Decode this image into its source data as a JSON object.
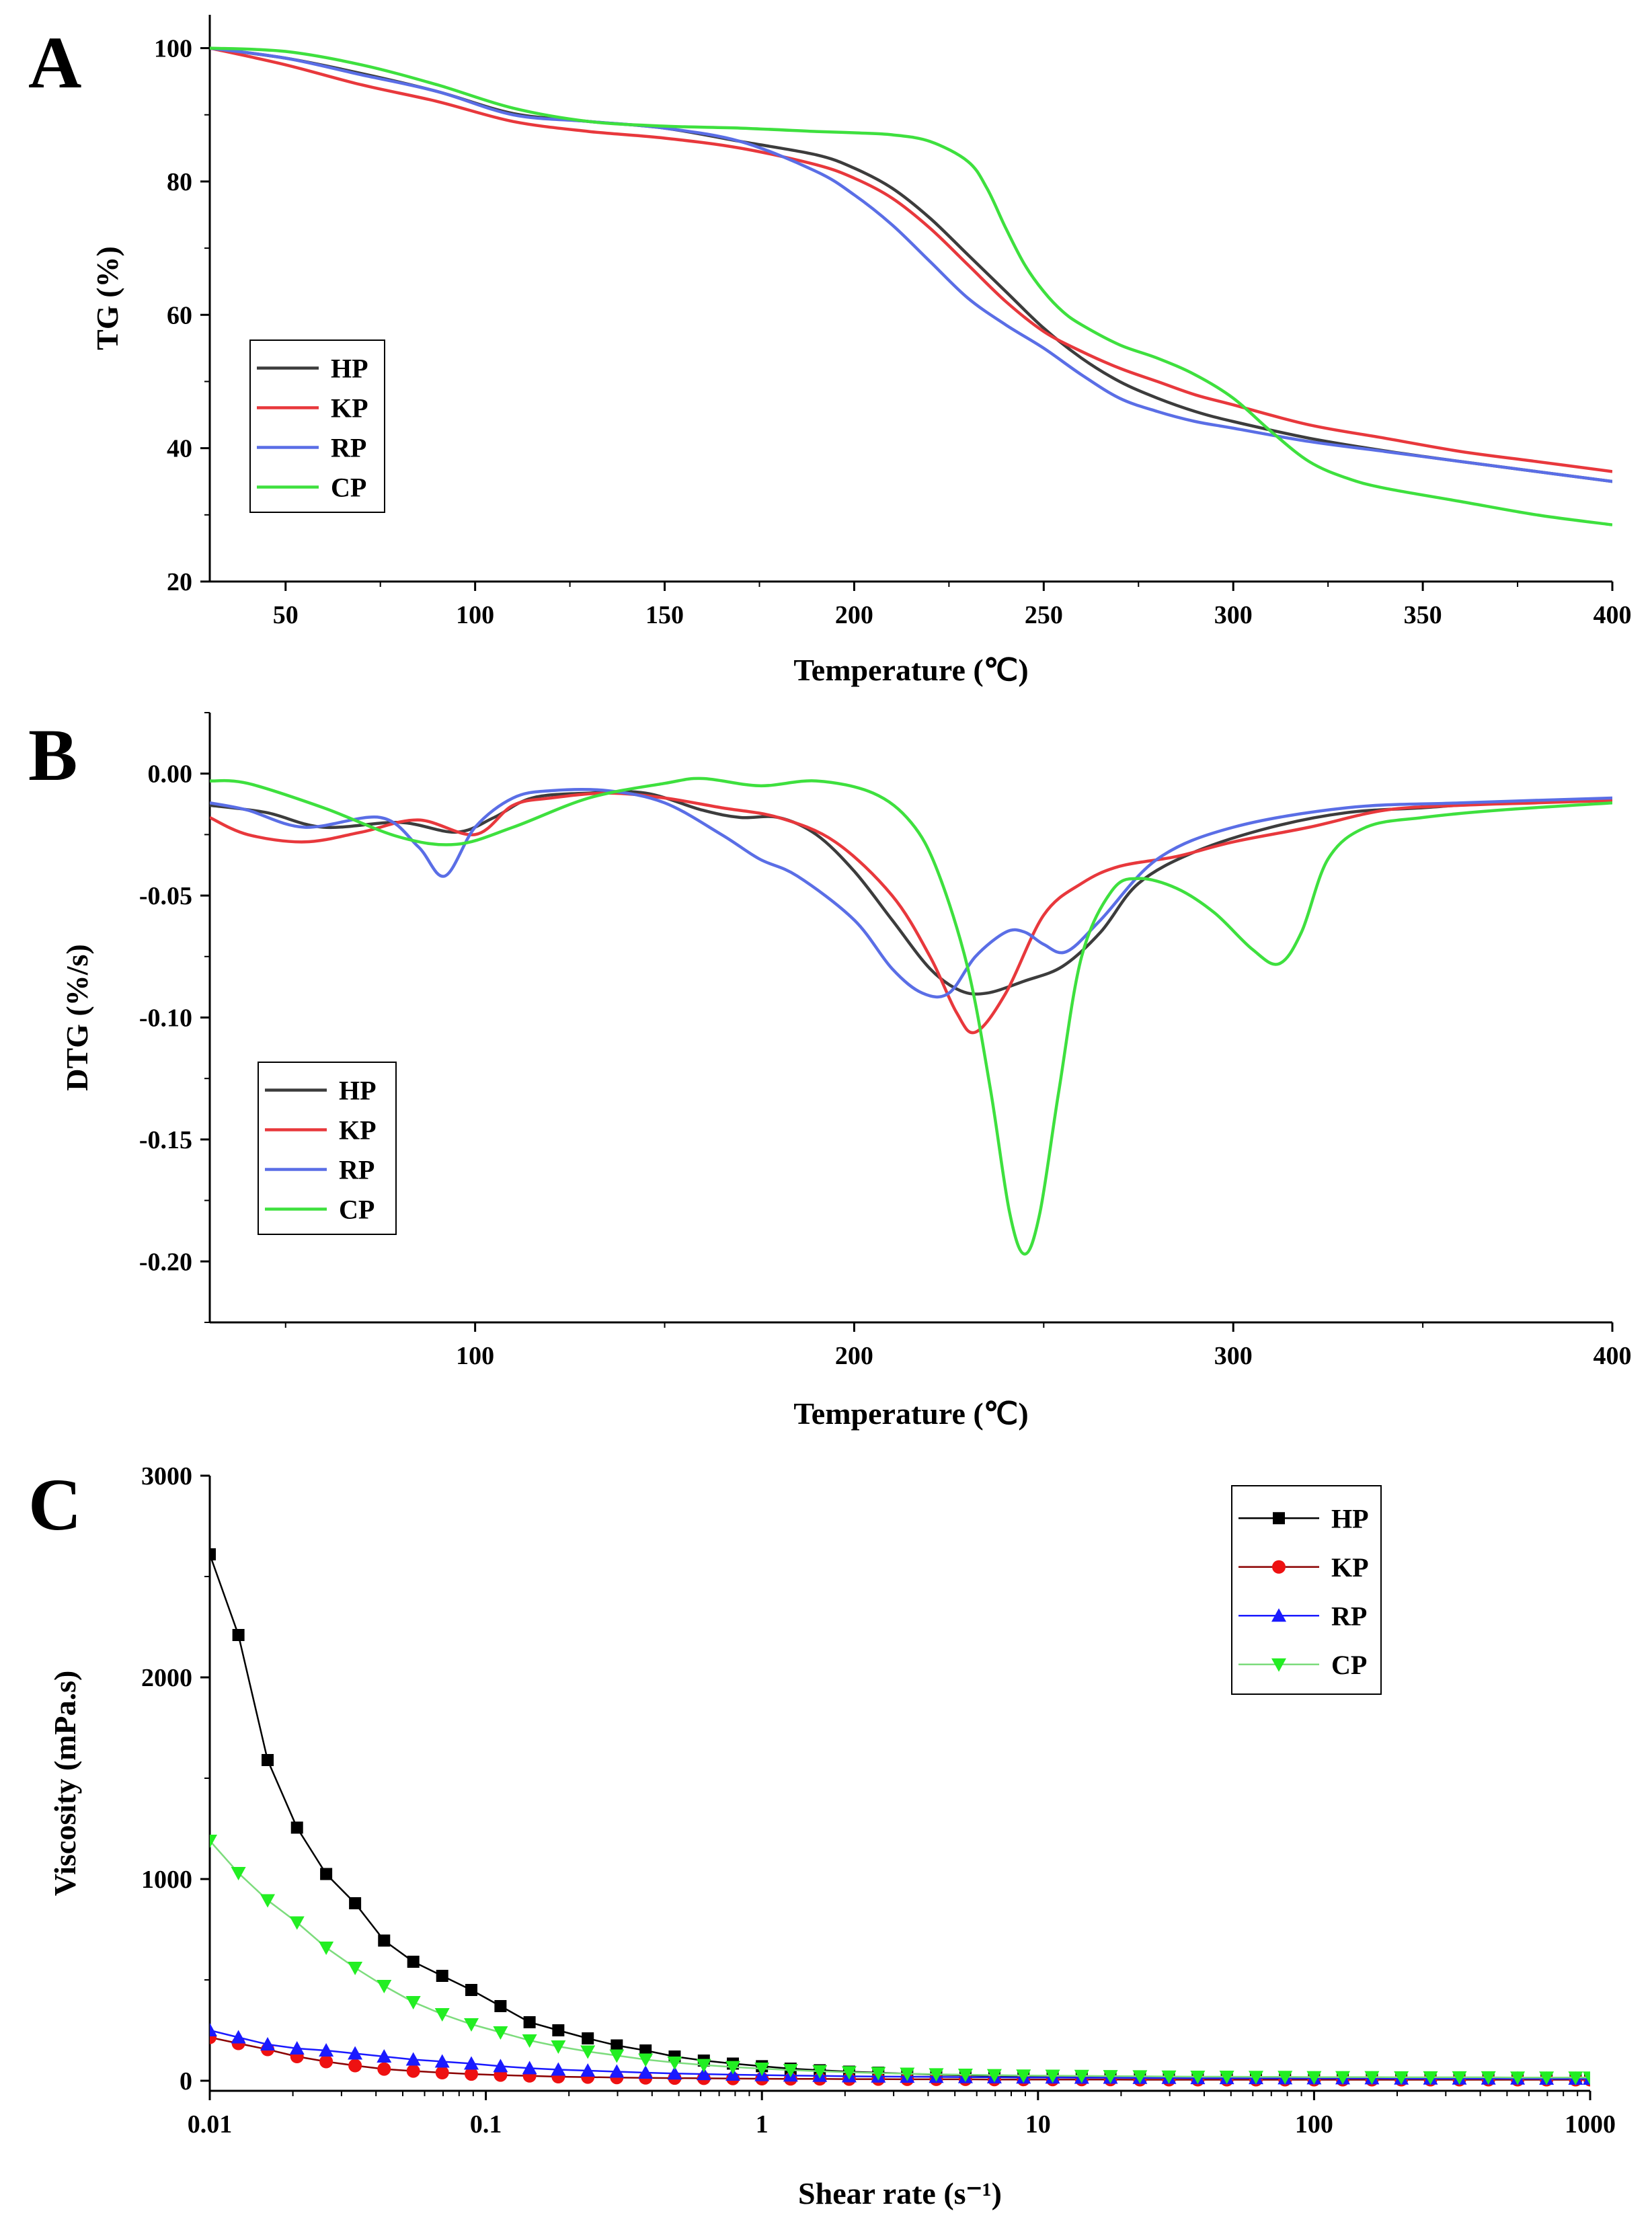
{
  "chart_data": [
    {
      "type": "line",
      "panel": "A",
      "title": "",
      "xlabel": "Temperature (℃)",
      "ylabel": "TG (%)",
      "xlim": [
        30,
        400
      ],
      "ylim": [
        20,
        105
      ],
      "xticks": [
        50,
        100,
        150,
        200,
        250,
        300,
        350,
        400
      ],
      "yticks": [
        20,
        40,
        60,
        80,
        100
      ],
      "legend_position": "left-middle",
      "series": [
        {
          "name": "HP",
          "color": "#3c3c3c",
          "x": [
            30,
            50,
            70,
            90,
            110,
            130,
            150,
            170,
            190,
            200,
            210,
            220,
            230,
            240,
            250,
            260,
            270,
            280,
            290,
            300,
            320,
            340,
            360,
            380,
            400
          ],
          "y": [
            100,
            98.5,
            96.2,
            93.5,
            90.2,
            89.0,
            88.0,
            86.0,
            84.0,
            82.0,
            79.0,
            74.5,
            69.0,
            63.5,
            58.0,
            53.5,
            50.0,
            47.5,
            45.5,
            44.0,
            41.5,
            39.6,
            38.0,
            36.5,
            35.0
          ]
        },
        {
          "name": "KP",
          "color": "#e8383c",
          "x": [
            30,
            50,
            70,
            90,
            110,
            130,
            150,
            170,
            190,
            200,
            210,
            220,
            230,
            240,
            250,
            260,
            270,
            280,
            290,
            300,
            320,
            340,
            360,
            380,
            400
          ],
          "y": [
            100,
            97.5,
            94.5,
            92.0,
            89.0,
            87.5,
            86.5,
            85.0,
            82.5,
            80.5,
            77.5,
            73.0,
            67.5,
            62.0,
            57.5,
            54.5,
            52.0,
            50.0,
            48.0,
            46.5,
            43.5,
            41.5,
            39.5,
            38.0,
            36.5
          ]
        },
        {
          "name": "RP",
          "color": "#5a6ee6",
          "x": [
            30,
            50,
            70,
            90,
            110,
            130,
            150,
            170,
            190,
            200,
            210,
            220,
            230,
            240,
            250,
            260,
            270,
            280,
            290,
            300,
            320,
            340,
            360,
            380,
            400
          ],
          "y": [
            100,
            98.5,
            96.0,
            93.5,
            90.0,
            89.0,
            88.0,
            86.0,
            81.5,
            78.0,
            73.5,
            68.0,
            62.5,
            58.5,
            55.0,
            51.0,
            47.5,
            45.5,
            44.0,
            43.0,
            41.0,
            39.5,
            38.0,
            36.5,
            35.0
          ]
        },
        {
          "name": "CP",
          "color": "#3ee03e",
          "x": [
            30,
            50,
            70,
            90,
            110,
            130,
            150,
            170,
            190,
            200,
            210,
            220,
            230,
            235,
            240,
            245,
            250,
            255,
            260,
            270,
            280,
            290,
            300,
            310,
            320,
            330,
            340,
            360,
            380,
            400
          ],
          "y": [
            100,
            99.5,
            97.5,
            94.5,
            91.0,
            89.0,
            88.3,
            88.0,
            87.5,
            87.3,
            87.0,
            86.0,
            83.0,
            79.0,
            73.0,
            67.5,
            63.5,
            60.5,
            58.5,
            55.5,
            53.5,
            51.0,
            47.5,
            42.5,
            38.0,
            35.5,
            34.0,
            32.0,
            30.0,
            28.5
          ]
        }
      ]
    },
    {
      "type": "line",
      "panel": "B",
      "title": "",
      "xlabel": "Temperature (℃)",
      "ylabel": "DTG (%/s)",
      "xlim": [
        30,
        400
      ],
      "ylim": [
        -0.225,
        0.025
      ],
      "xticks": [
        100,
        200,
        300,
        400
      ],
      "yticks": [
        "0.00",
        "-0.05",
        "-0.10",
        "-0.15",
        "-0.20"
      ],
      "legend_position": "left-bottom",
      "series": [
        {
          "name": "HP",
          "color": "#3c3c3c",
          "x": [
            30,
            45,
            60,
            80,
            95,
            105,
            115,
            130,
            145,
            160,
            170,
            180,
            190,
            200,
            210,
            220,
            228,
            235,
            245,
            255,
            265,
            275,
            290,
            310,
            330,
            350,
            370,
            400
          ],
          "y": [
            -0.013,
            -0.016,
            -0.022,
            -0.02,
            -0.024,
            -0.018,
            -0.01,
            -0.008,
            -0.008,
            -0.015,
            -0.018,
            -0.018,
            -0.025,
            -0.04,
            -0.06,
            -0.08,
            -0.089,
            -0.09,
            -0.085,
            -0.079,
            -0.065,
            -0.045,
            -0.032,
            -0.022,
            -0.016,
            -0.014,
            -0.012,
            -0.011
          ]
        },
        {
          "name": "KP",
          "color": "#e8383c",
          "x": [
            30,
            40,
            55,
            70,
            85,
            100,
            110,
            120,
            135,
            150,
            165,
            180,
            195,
            210,
            220,
            227,
            232,
            240,
            250,
            260,
            270,
            285,
            300,
            320,
            340,
            360,
            380,
            400
          ],
          "y": [
            -0.018,
            -0.025,
            -0.028,
            -0.024,
            -0.019,
            -0.025,
            -0.013,
            -0.01,
            -0.008,
            -0.01,
            -0.014,
            -0.018,
            -0.028,
            -0.05,
            -0.075,
            -0.098,
            -0.106,
            -0.09,
            -0.058,
            -0.045,
            -0.038,
            -0.034,
            -0.028,
            -0.022,
            -0.015,
            -0.013,
            -0.012,
            -0.011
          ]
        },
        {
          "name": "RP",
          "color": "#5a6ee6",
          "x": [
            30,
            40,
            55,
            75,
            85,
            92,
            100,
            110,
            120,
            135,
            150,
            165,
            175,
            185,
            200,
            210,
            218,
            225,
            232,
            240,
            245,
            250,
            256,
            265,
            280,
            300,
            330,
            360,
            400
          ],
          "y": [
            -0.012,
            -0.015,
            -0.022,
            -0.018,
            -0.03,
            -0.042,
            -0.022,
            -0.01,
            -0.007,
            -0.007,
            -0.012,
            -0.025,
            -0.035,
            -0.042,
            -0.06,
            -0.08,
            -0.09,
            -0.09,
            -0.075,
            -0.065,
            -0.065,
            -0.07,
            -0.073,
            -0.06,
            -0.035,
            -0.022,
            -0.014,
            -0.012,
            -0.01
          ]
        },
        {
          "name": "CP",
          "color": "#3ee03e",
          "x": [
            30,
            40,
            60,
            80,
            95,
            110,
            130,
            150,
            160,
            175,
            190,
            205,
            215,
            222,
            230,
            236,
            241,
            245,
            249,
            254,
            260,
            268,
            275,
            285,
            295,
            305,
            312,
            318,
            325,
            335,
            350,
            370,
            400
          ],
          "y": [
            -0.003,
            -0.004,
            -0.014,
            -0.026,
            -0.029,
            -0.022,
            -0.01,
            -0.004,
            -0.002,
            -0.005,
            -0.003,
            -0.008,
            -0.02,
            -0.04,
            -0.08,
            -0.13,
            -0.18,
            -0.197,
            -0.18,
            -0.13,
            -0.075,
            -0.048,
            -0.043,
            -0.047,
            -0.057,
            -0.072,
            -0.078,
            -0.065,
            -0.035,
            -0.022,
            -0.018,
            -0.015,
            -0.012
          ]
        }
      ]
    },
    {
      "type": "line",
      "panel": "C",
      "title": "",
      "xlabel": "Shear rate (s⁻¹)",
      "ylabel": "Viscosity (mPa.s)",
      "xscale": "log",
      "xlim": [
        0.01,
        1000
      ],
      "ylim": [
        -50,
        3000
      ],
      "xticks": [
        "0.01",
        "0.1",
        "1",
        "10",
        "100",
        "1000"
      ],
      "yticks": [
        0,
        1000,
        2000,
        3000
      ],
      "legend_position": "top-right",
      "x": [
        0.01,
        0.0127,
        0.0162,
        0.0207,
        0.0264,
        0.0336,
        0.0428,
        0.0546,
        0.0695,
        0.0886,
        0.113,
        0.144,
        0.183,
        0.234,
        0.298,
        0.379,
        0.483,
        0.616,
        0.785,
        1.0,
        1.27,
        1.62,
        2.07,
        2.64,
        3.36,
        4.28,
        5.46,
        6.95,
        8.86,
        11.3,
        14.4,
        18.3,
        23.4,
        29.8,
        37.9,
        48.3,
        61.6,
        78.5,
        100,
        127,
        162,
        207,
        264,
        336,
        428,
        546,
        695,
        886,
        1000
      ],
      "series": [
        {
          "name": "HP",
          "color": "#000000",
          "marker": "square",
          "values": [
            2610,
            2210,
            1590,
            1255,
            1025,
            880,
            695,
            590,
            520,
            450,
            370,
            290,
            250,
            210,
            175,
            150,
            120,
            100,
            85,
            72,
            60,
            52,
            45,
            40,
            35,
            30,
            27,
            25,
            23,
            21,
            20,
            19,
            18,
            17,
            16,
            15,
            15,
            14,
            14,
            13,
            13,
            13,
            12,
            12,
            12,
            12,
            11,
            11,
            11
          ]
        },
        {
          "name": "KP",
          "color": "#ee1111",
          "line_color": "#8b0000",
          "marker": "circle",
          "values": [
            215,
            185,
            155,
            120,
            95,
            75,
            58,
            48,
            40,
            33,
            28,
            24,
            20,
            18,
            16,
            14,
            13,
            12,
            11,
            10,
            9,
            9,
            8,
            8,
            7,
            7,
            7,
            6,
            6,
            6,
            6,
            6,
            5,
            5,
            5,
            5,
            5,
            5,
            5,
            5,
            5,
            5,
            5,
            5,
            5,
            5,
            5,
            5,
            5
          ]
        },
        {
          "name": "RP",
          "color": "#1a1aff",
          "marker": "triangle-up",
          "values": [
            250,
            215,
            180,
            160,
            150,
            135,
            120,
            105,
            95,
            85,
            72,
            62,
            55,
            50,
            45,
            40,
            36,
            33,
            30,
            28,
            26,
            24,
            22,
            21,
            20,
            19,
            18,
            17,
            16,
            16,
            15,
            15,
            14,
            14,
            13,
            13,
            13,
            12,
            12,
            12,
            12,
            11,
            11,
            11,
            11,
            11,
            10,
            10,
            10
          ]
        },
        {
          "name": "CP",
          "color": "#22ee22",
          "line_color": "#7ddc7d",
          "marker": "triangle-down",
          "values": [
            1190,
            1030,
            895,
            785,
            660,
            560,
            470,
            390,
            330,
            280,
            240,
            200,
            170,
            145,
            125,
            105,
            90,
            78,
            68,
            60,
            53,
            47,
            42,
            38,
            35,
            32,
            30,
            28,
            26,
            25,
            24,
            23,
            22,
            21,
            20,
            20,
            19,
            19,
            18,
            18,
            18,
            17,
            17,
            17,
            17,
            16,
            16,
            16,
            16
          ]
        }
      ]
    }
  ]
}
